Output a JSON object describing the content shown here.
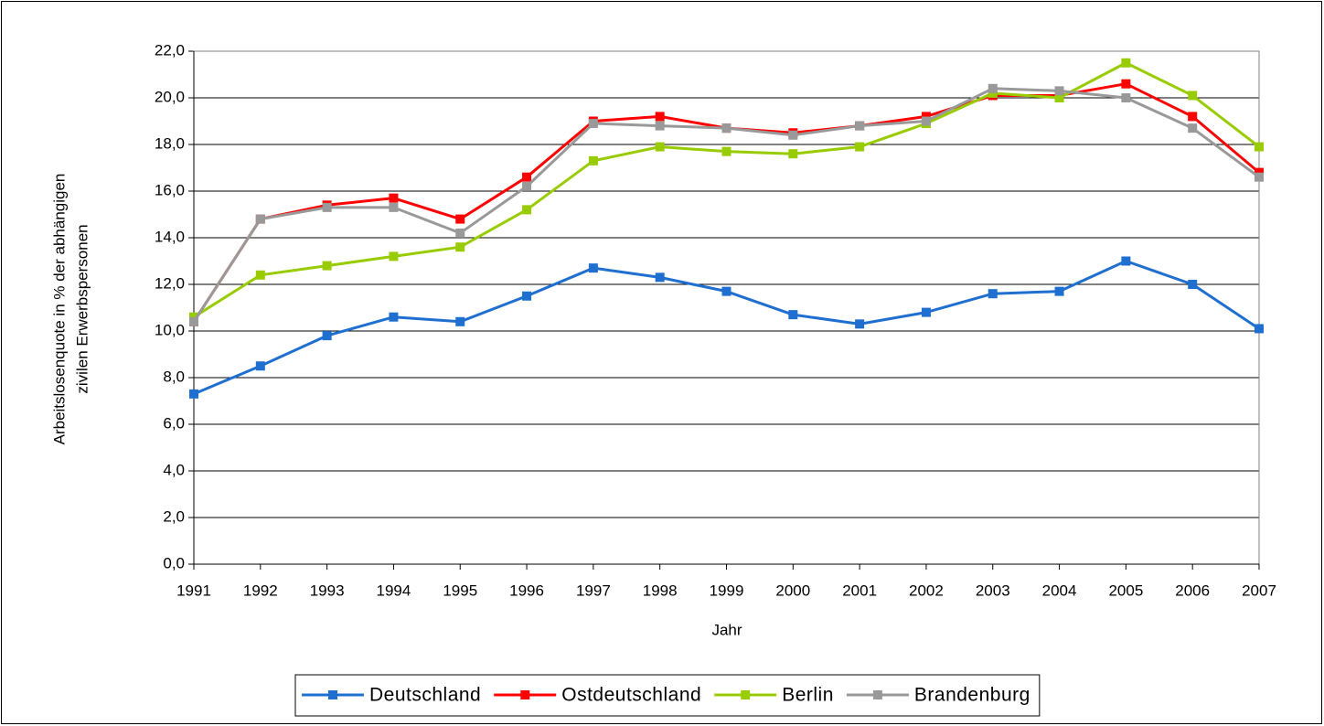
{
  "chart_data": {
    "type": "line",
    "xlabel": "Jahr",
    "ylabel": [
      "Arbeitslosenquote in % der abhängigen",
      "zivilen Erwerbspersonen"
    ],
    "categories": [
      "1991",
      "1992",
      "1993",
      "1994",
      "1995",
      "1996",
      "1997",
      "1998",
      "1999",
      "2000",
      "2001",
      "2002",
      "2003",
      "2004",
      "2005",
      "2006",
      "2007"
    ],
    "series": [
      {
        "name": "Deutschland",
        "color": "#1f6fd0",
        "values": [
          7.3,
          8.5,
          9.8,
          10.6,
          10.4,
          11.5,
          12.7,
          12.3,
          11.7,
          10.7,
          10.3,
          10.8,
          11.6,
          11.7,
          13.0,
          12.0,
          10.1
        ]
      },
      {
        "name": "Ostdeutschland",
        "color": "#ff0000",
        "values": [
          10.4,
          14.8,
          15.4,
          15.7,
          14.8,
          16.6,
          19.0,
          19.2,
          18.7,
          18.5,
          18.8,
          19.2,
          20.1,
          20.1,
          20.6,
          19.2,
          16.8
        ]
      },
      {
        "name": "Berlin",
        "color": "#99cc00",
        "values": [
          10.6,
          12.4,
          12.8,
          13.2,
          13.6,
          15.2,
          17.3,
          17.9,
          17.7,
          17.6,
          17.9,
          18.9,
          20.2,
          20.0,
          21.5,
          20.1,
          17.9
        ]
      },
      {
        "name": "Brandenburg",
        "color": "#999999",
        "values": [
          10.4,
          14.8,
          15.3,
          15.3,
          14.2,
          16.2,
          18.9,
          18.8,
          18.7,
          18.4,
          18.8,
          19.0,
          20.4,
          20.3,
          20.0,
          18.7,
          16.6
        ]
      }
    ],
    "ylim": [
      0,
      22
    ],
    "yticks": [
      {
        "value": 0,
        "label": "0,0"
      },
      {
        "value": 2,
        "label": "2,0"
      },
      {
        "value": 4,
        "label": "4,0"
      },
      {
        "value": 6,
        "label": "6,0"
      },
      {
        "value": 8,
        "label": "8,0"
      },
      {
        "value": 10,
        "label": "10,0"
      },
      {
        "value": 12,
        "label": "12,0"
      },
      {
        "value": 14,
        "label": "14,0"
      },
      {
        "value": 16,
        "label": "16,0"
      },
      {
        "value": 18,
        "label": "18,0"
      },
      {
        "value": 20,
        "label": "20,0"
      },
      {
        "value": 22,
        "label": "22,0"
      }
    ],
    "grid": true,
    "legend": "bottom"
  }
}
